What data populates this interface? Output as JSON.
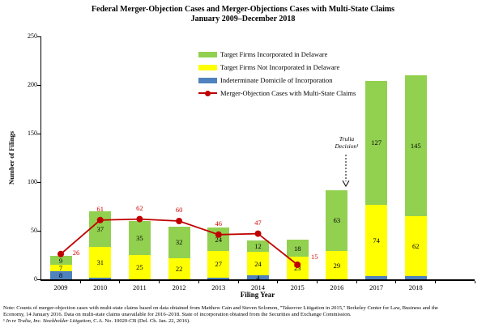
{
  "chart_data": {
    "type": "bar",
    "subtype": "stacked_bars_with_line_overlay",
    "title": "Federal Merger-Objection Cases and Merger-Objections Cases with Multi-State Claims",
    "subtitle": "January 2009–December 2018",
    "xlabel": "Filing Year",
    "ylabel": "Number of Filings",
    "ylim": [
      0,
      250
    ],
    "yticks": [
      0,
      50,
      100,
      150,
      200,
      250
    ],
    "grid": false,
    "legend_position": "inside-top-center",
    "categories": [
      "2009",
      "2010",
      "2011",
      "2012",
      "2013",
      "2014",
      "2015",
      "2016",
      "2017",
      "2018"
    ],
    "series": [
      {
        "name": "Indeterminate Domicile of Incorporation",
        "color": "#4F81BD",
        "values": [
          8,
          2,
          0,
          0,
          2,
          4,
          0,
          0,
          3,
          3
        ],
        "labels_shown": [
          true,
          false,
          false,
          false,
          false,
          true,
          false,
          false,
          false,
          false
        ]
      },
      {
        "name": "Target Firms Not Incorporated in Delaware",
        "color": "#FFFF00",
        "values": [
          7,
          31,
          25,
          22,
          27,
          24,
          23,
          29,
          74,
          62
        ]
      },
      {
        "name": "Target Firms Incorporated in Delaware",
        "color": "#92D050",
        "values": [
          9,
          37,
          35,
          32,
          24,
          12,
          18,
          63,
          127,
          145
        ]
      }
    ],
    "line_series": {
      "name": "Merger-Objection Cases with Multi-State Claims",
      "color": "#C00000",
      "label_color": "#D40000",
      "values": [
        26,
        61,
        62,
        60,
        46,
        47,
        15,
        null,
        null,
        null
      ]
    },
    "legend_items": [
      {
        "label": "Target Firms Incorporated in Delaware",
        "color": "#92D050",
        "marker": "box"
      },
      {
        "label": "Target Firms Not Incorporated in Delaware",
        "color": "#FFFF00",
        "marker": "box"
      },
      {
        "label": "Indeterminate Domicile of Incorporation",
        "color": "#4F81BD",
        "marker": "box"
      },
      {
        "label": "Merger-Objection Cases with Multi-State Claims",
        "color": "#C00000",
        "marker": "line"
      }
    ],
    "annotation": {
      "line1": "Trulia",
      "line2": "Decision¹",
      "points_to": "2016"
    }
  },
  "note": {
    "line1": "Note: Counts of merger-objection cases with multi-state claims based on data obtained from Matthew Cain and Steven Solomon, \"Takeover Litigation in 2015,\" Berkeley Center for Law, Business and the",
    "line2": "Economy, 14 January 2016. Data on multi-state claims unavailable for 2016–2018. State of incorporation obtained from the Securities and Exchange Commission.",
    "citation": {
      "marker": "¹ ",
      "case": "In re Trulia, Inc. Stockholder Litigation",
      "rest": ", C.A. No. 10020-CB (Del. Ch. Jan. 22, 2016)."
    }
  }
}
